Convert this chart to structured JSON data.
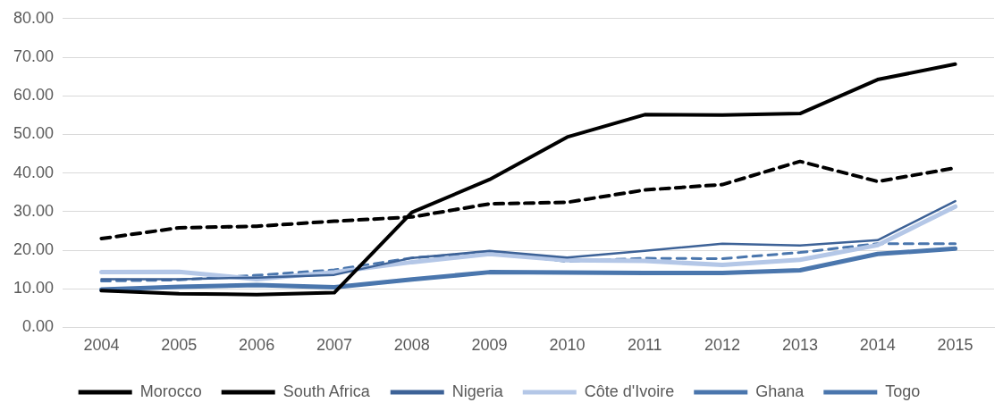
{
  "chart_data": {
    "type": "line",
    "categories": [
      "2004",
      "2005",
      "2006",
      "2007",
      "2008",
      "2009",
      "2010",
      "2011",
      "2012",
      "2013",
      "2014",
      "2015"
    ],
    "ylim": [
      0,
      80
    ],
    "yticks": [
      {
        "value": 0,
        "label": "0.00"
      },
      {
        "value": 10,
        "label": "10.00"
      },
      {
        "value": 20,
        "label": "20.00"
      },
      {
        "value": 30,
        "label": "30.00"
      },
      {
        "value": 40,
        "label": "40.00"
      },
      {
        "value": 50,
        "label": "50.00"
      },
      {
        "value": 60,
        "label": "60.00"
      },
      {
        "value": 70,
        "label": "70.00"
      },
      {
        "value": 80,
        "label": "80.00"
      }
    ],
    "grid": "y",
    "legend": "bottom",
    "marker": "none",
    "series": [
      {
        "name": "Morocco",
        "color": "#000000",
        "line_style": "solid",
        "values": [
          9.5,
          8.7,
          8.5,
          9.0,
          29.8,
          38.3,
          49.3,
          55.1,
          55.0,
          55.4,
          64.2,
          68.2
        ]
      },
      {
        "name": "South Africa",
        "color": "#000000",
        "line_style": "dashed",
        "values": [
          23.0,
          25.8,
          26.2,
          27.5,
          28.6,
          32.0,
          32.4,
          35.6,
          37.0,
          43.0,
          37.8,
          41.3
        ]
      },
      {
        "name": "Nigeria",
        "color": "#3d6297",
        "line_style": "solid",
        "values": [
          12.5,
          12.5,
          12.9,
          13.6,
          18.0,
          19.8,
          18.1,
          19.8,
          21.7,
          21.2,
          22.6,
          32.7
        ]
      },
      {
        "name": "Côte d'Ivoire",
        "color": "#b4c7e7",
        "line_style": "solid",
        "values": [
          14.3,
          14.4,
          12.5,
          14.3,
          16.9,
          19.0,
          17.4,
          17.2,
          16.2,
          17.5,
          21.3,
          31.3
        ]
      },
      {
        "name": "Ghana",
        "color": "#4a76ad",
        "line_style": "dashed",
        "values": [
          12.0,
          12.3,
          13.5,
          14.9,
          18.0,
          19.4,
          17.1,
          17.9,
          17.8,
          19.4,
          21.7,
          21.7
        ]
      },
      {
        "name": "Togo",
        "color": "#4a76ad",
        "line_style": "solid",
        "values": [
          9.8,
          10.5,
          11.0,
          10.4,
          12.4,
          14.3,
          14.2,
          14.1,
          14.1,
          14.8,
          19.0,
          20.4
        ]
      }
    ]
  }
}
